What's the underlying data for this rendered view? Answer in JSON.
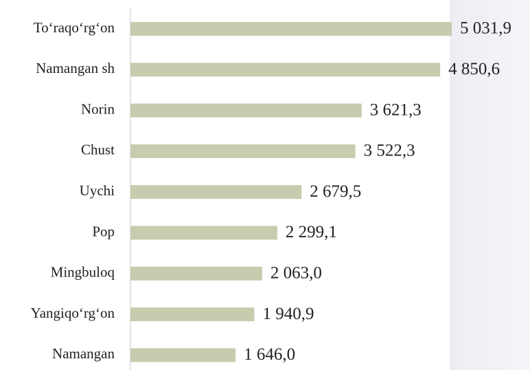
{
  "chart_data": {
    "type": "hbar",
    "categories": [
      "To‘raqo‘rg‘on",
      "Namangan sh",
      "Norin",
      "Chust",
      "Uychi",
      "Pop",
      "Mingbuloq",
      "Yangiqo‘rg‘on",
      "Namangan"
    ],
    "values": [
      5031.9,
      4850.6,
      3621.3,
      3522.3,
      2679.5,
      2299.1,
      2063.0,
      1940.9,
      1646.0
    ],
    "value_labels": [
      "5 031,9",
      "4 850,6",
      "3 621,3",
      "3 522,3",
      "2 679,5",
      "2 299,1",
      "2 063,0",
      "1 940,9",
      "1 646,0"
    ],
    "color": "#c8cbae",
    "xlim": [
      0,
      5500
    ]
  }
}
